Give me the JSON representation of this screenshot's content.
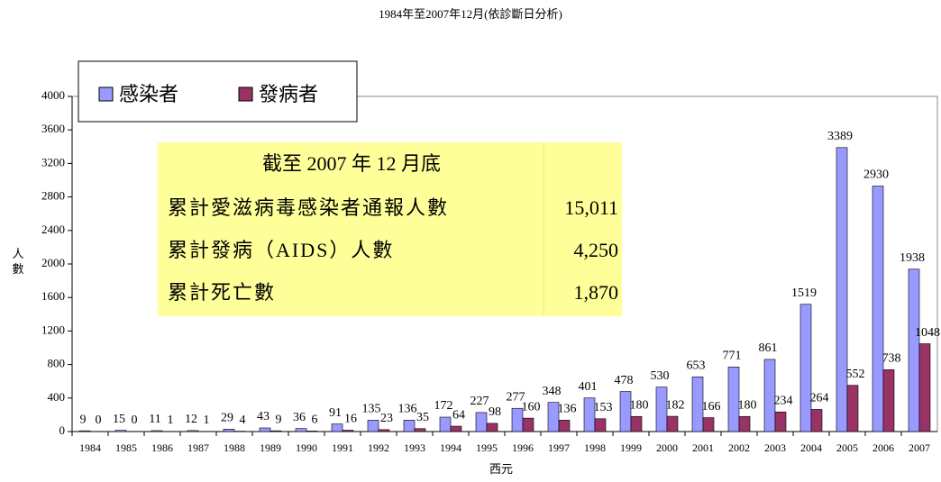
{
  "chart_data": {
    "type": "bar",
    "subtitle": "1984年至2007年12月(依診斷日分析)",
    "x_label": "西元",
    "y_label": "人數",
    "categories": [
      "1984",
      "1985",
      "1986",
      "1987",
      "1988",
      "1989",
      "1990",
      "1991",
      "1992",
      "1993",
      "1994",
      "1995",
      "1996",
      "1997",
      "1998",
      "1999",
      "2000",
      "2001",
      "2002",
      "2003",
      "2004",
      "2005",
      "2006",
      "2007"
    ],
    "series": [
      {
        "name": "感染者",
        "color": "#9999ff",
        "values": [
          9,
          15,
          11,
          12,
          29,
          43,
          36,
          91,
          135,
          136,
          172,
          227,
          277,
          348,
          401,
          478,
          530,
          653,
          771,
          861,
          1519,
          3389,
          2930,
          1938
        ]
      },
      {
        "name": "發病者",
        "color": "#993366",
        "values": [
          0,
          0,
          1,
          1,
          4,
          9,
          6,
          16,
          23,
          35,
          64,
          98,
          160,
          136,
          153,
          180,
          182,
          166,
          180,
          234,
          264,
          552,
          738,
          1048
        ]
      }
    ],
    "ylim": [
      0,
      4000
    ],
    "yticks": [
      0,
      400,
      800,
      1200,
      1600,
      2000,
      2400,
      2800,
      3200,
      3600,
      4000
    ],
    "legend": "top-left",
    "annotation": {
      "title": "截至 2007 年 12 月底",
      "rows": [
        [
          "累計愛滋病毒感染者通報人數",
          "15,011"
        ],
        [
          "累計發病（AIDS）人數",
          "4,250"
        ],
        [
          "累計死亡數",
          "1,870"
        ]
      ]
    }
  }
}
